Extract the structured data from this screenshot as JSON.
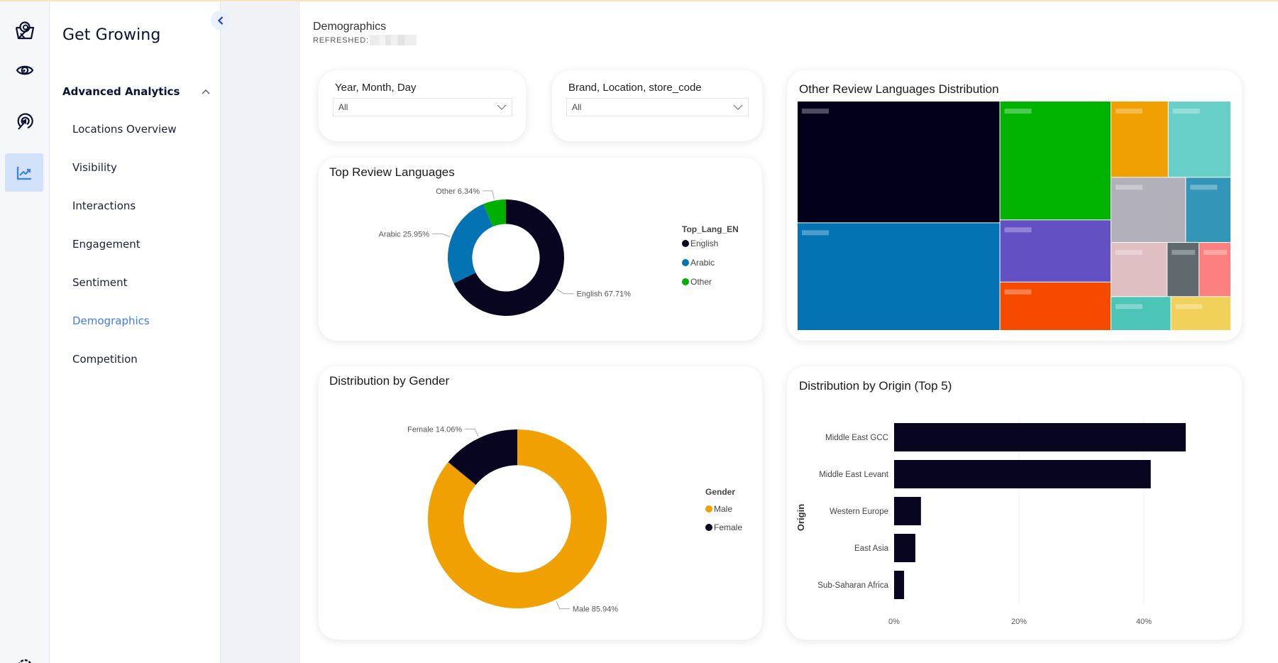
{
  "app": {
    "brand": "Get Growing",
    "collapse_label": "Collapse navigation"
  },
  "rail": {
    "items": [
      {
        "icon": "basket-logo-icon",
        "active": false
      },
      {
        "icon": "eye-icon",
        "active": false
      },
      {
        "icon": "target-click-icon",
        "active": false
      },
      {
        "icon": "trend-chart-icon",
        "active": true
      }
    ],
    "bottom_icon": "gear-icon"
  },
  "nav": {
    "section": "Advanced Analytics",
    "section_expanded": true,
    "items": [
      {
        "label": "Locations Overview",
        "active": false
      },
      {
        "label": "Visibility",
        "active": false
      },
      {
        "label": "Interactions",
        "active": false
      },
      {
        "label": "Engagement",
        "active": false
      },
      {
        "label": "Sentiment",
        "active": false
      },
      {
        "label": "Demographics",
        "active": true
      },
      {
        "label": "Competition",
        "active": false
      }
    ],
    "active_color": "#3d7cf4"
  },
  "page": {
    "title": "Demographics",
    "refreshed_label": "REFRESHED:"
  },
  "filters": [
    {
      "label": "Year, Month, Day",
      "value": "All"
    },
    {
      "label": "Brand, Location, store_code",
      "value": "All"
    }
  ],
  "chart_data": [
    {
      "type": "pie",
      "variant": "donut",
      "title": "Top Review Languages",
      "legend_title": "Top_Lang_EN",
      "legend_position": "right",
      "categories": [
        "English",
        "Arabic",
        "Other"
      ],
      "values": [
        67.71,
        25.95,
        6.34
      ],
      "unit": "%",
      "data_labels": [
        "English 67.71%",
        "Arabic 25.95%",
        "Other 6.34%"
      ],
      "colors": [
        "#07051f",
        "#0473b3",
        "#00b000"
      ]
    },
    {
      "type": "treemap",
      "title": "Other Review Languages Distribution",
      "note": "tile labels obscured in screenshot",
      "tiles": [
        {
          "color": "#02001a",
          "share": 0.243
        },
        {
          "color": "#0473b3",
          "share": 0.215
        },
        {
          "color": "#00b300",
          "share": 0.13
        },
        {
          "color": "#6350c2",
          "share": 0.068
        },
        {
          "color": "#f64a01",
          "share": 0.053
        },
        {
          "color": "#f0a000",
          "share": 0.043
        },
        {
          "color": "#69d0c9",
          "share": 0.047
        },
        {
          "color": "#b2b0bb",
          "share": 0.048
        },
        {
          "color": "#3396b8",
          "share": 0.029
        },
        {
          "color": "#dfbfc2",
          "share": 0.03
        },
        {
          "color": "#606a6e",
          "share": 0.017
        },
        {
          "color": "#fc8080",
          "share": 0.017
        },
        {
          "color": "#4cc5b8",
          "share": 0.02
        },
        {
          "color": "#f2d15a",
          "share": 0.02
        }
      ]
    },
    {
      "type": "pie",
      "variant": "donut",
      "title": "Distribution by Gender",
      "legend_title": "Gender",
      "legend_position": "right",
      "categories": [
        "Male",
        "Female"
      ],
      "values": [
        85.94,
        14.06
      ],
      "unit": "%",
      "data_labels": [
        "Male 85.94%",
        "Female 14.06%"
      ],
      "colors": [
        "#f0a000",
        "#07051f"
      ]
    },
    {
      "type": "bar",
      "orientation": "horizontal",
      "title": "Distribution by Origin (Top 5)",
      "ylabel": "Origin",
      "xlabel": "",
      "categories": [
        "Middle East GCC",
        "Middle East Levant",
        "Western Europe",
        "East Asia",
        "Sub-Saharan Africa"
      ],
      "values": [
        46.7,
        41.1,
        4.3,
        3.4,
        1.6
      ],
      "unit": "%",
      "xlim": [
        0,
        50
      ],
      "xticks": [
        "0%",
        "20%",
        "40%"
      ],
      "xtick_values": [
        0,
        20,
        40
      ],
      "grid": true,
      "color": "#07051f"
    }
  ]
}
